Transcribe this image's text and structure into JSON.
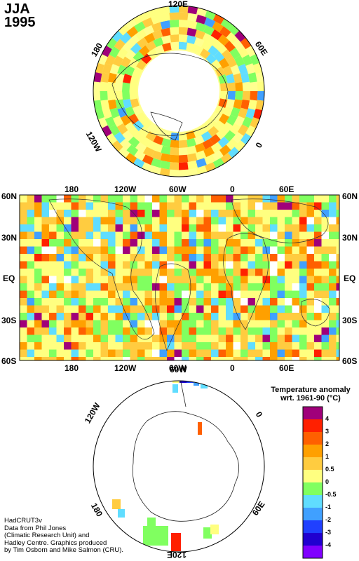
{
  "title": {
    "season": "JJA",
    "year": "1995"
  },
  "north_polar_map": {
    "longitude_labels": [
      "120E",
      "60E",
      "0",
      "120W",
      "180"
    ]
  },
  "world_map": {
    "top_lon_labels": [
      "180",
      "120W",
      "60W",
      "0",
      "60E"
    ],
    "bottom_lon_labels": [
      "180",
      "120W",
      "60W",
      "0",
      "60E"
    ],
    "left_lat_labels": [
      "60N",
      "30N",
      "EQ",
      "30S",
      "60S"
    ],
    "right_lat_labels": [
      "60N",
      "30N",
      "EQ",
      "30S",
      "60S"
    ]
  },
  "south_polar_map": {
    "longitude_labels": [
      "60W",
      "120W",
      "0",
      "180",
      "60E",
      "120E"
    ]
  },
  "legend": {
    "title_line1": "Temperature anomaly",
    "title_line2": "wrt. 1961-90  (°C)",
    "ticks": [
      "4",
      "3",
      "2",
      "1",
      "0.5",
      "0",
      "-0.5",
      "-1",
      "-2",
      "-3",
      "-4"
    ],
    "colors": [
      "#a0007a",
      "#ff2000",
      "#ff6000",
      "#ffa000",
      "#ffcc40",
      "#ffff80",
      "#80ff60",
      "#60ddff",
      "#40a0ff",
      "#2040ff",
      "#2000d0",
      "#8000ff"
    ]
  },
  "credit": {
    "line1": "HadCRUT3v",
    "line2": "Data from Phil Jones",
    "line3": "(Climatic Research Unit) and",
    "line4": "Hadley Centre.  Graphics produced",
    "line5": "by Tim Osborn and Mike Salmon (CRU)."
  }
}
